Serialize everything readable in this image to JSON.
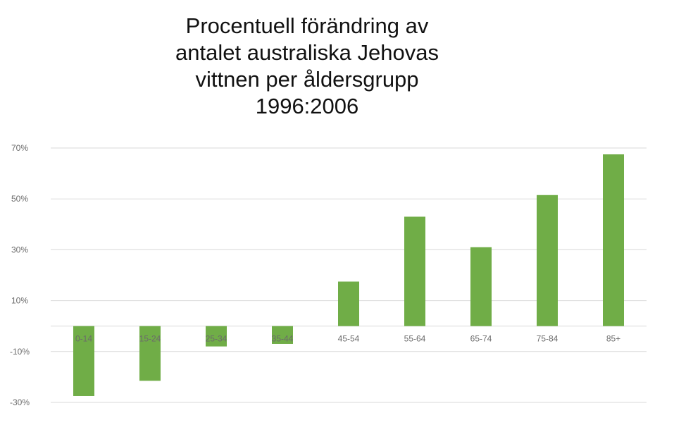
{
  "chart_data": {
    "type": "bar",
    "title_lines": [
      "Procentuell förändring av",
      "antalet australiska Jehovas",
      "vittnen per åldersgrupp",
      "1996:2006"
    ],
    "categories": [
      "0-14",
      "15-24",
      "25-34",
      "35-44",
      "45-54",
      "55-64",
      "65-74",
      "75-84",
      "85+"
    ],
    "values": [
      -27.5,
      -21.5,
      -8,
      -7,
      17.5,
      43,
      31,
      51.5,
      67.5
    ],
    "ylim": [
      -30,
      70
    ],
    "yticks": [
      70,
      50,
      30,
      10,
      -10,
      -30
    ],
    "ytick_labels": [
      "70%",
      "50%",
      "30%",
      "10%",
      "-10%",
      "-30%"
    ],
    "xlabel": "",
    "ylabel": "",
    "grid": true,
    "legend": "none",
    "bar_color": "#70ad47",
    "grid_color": "#d9d9d9"
  }
}
